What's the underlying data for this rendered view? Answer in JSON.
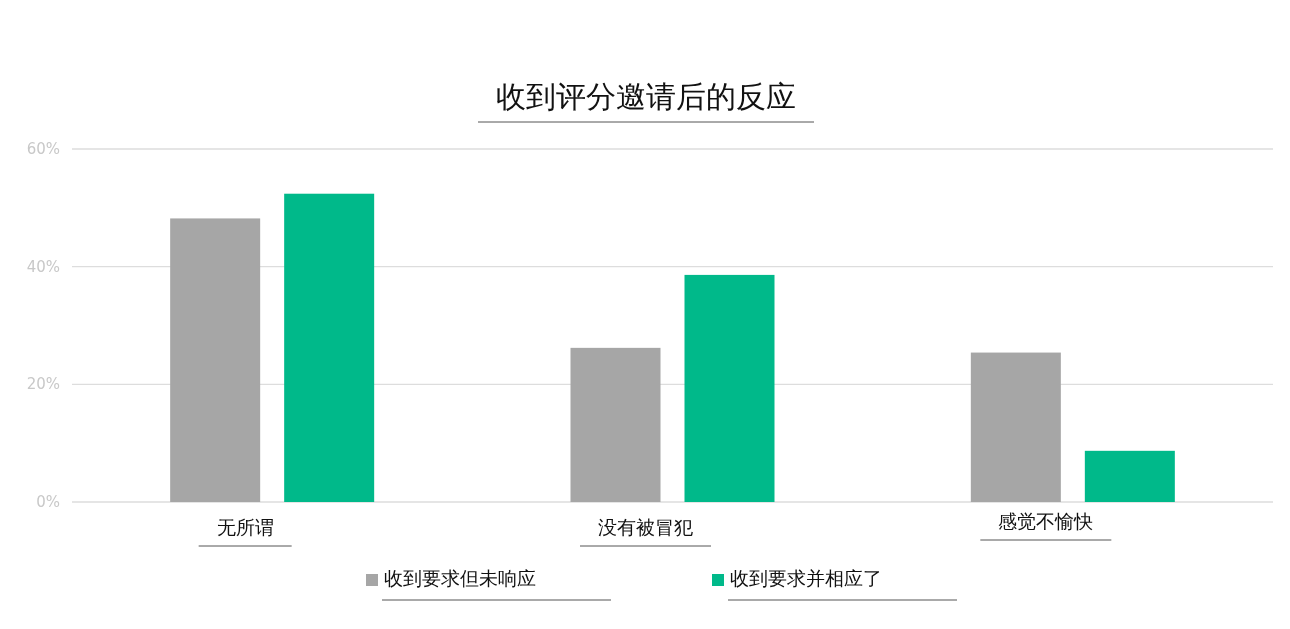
{
  "chart_data": {
    "type": "bar",
    "title": "收到评分邀请后的反应",
    "categories": [
      "无所谓",
      "没有被冒犯",
      "感觉不愉快"
    ],
    "series": [
      {
        "name": "收到要求但未响应",
        "color": "#a6a6a6",
        "values": [
          48.2,
          26.2,
          25.4
        ]
      },
      {
        "name": "收到要求并相应了",
        "color": "#00b98a",
        "values": [
          52.4,
          38.6,
          8.7
        ]
      }
    ],
    "ylim": [
      0,
      60
    ],
    "yticks": [
      {
        "value": 0,
        "label": "0%"
      },
      {
        "value": 20,
        "label": "20%"
      },
      {
        "value": 40,
        "label": "40%"
      },
      {
        "value": 60,
        "label": "60%"
      }
    ],
    "grid": "y",
    "legend": "bottom"
  }
}
